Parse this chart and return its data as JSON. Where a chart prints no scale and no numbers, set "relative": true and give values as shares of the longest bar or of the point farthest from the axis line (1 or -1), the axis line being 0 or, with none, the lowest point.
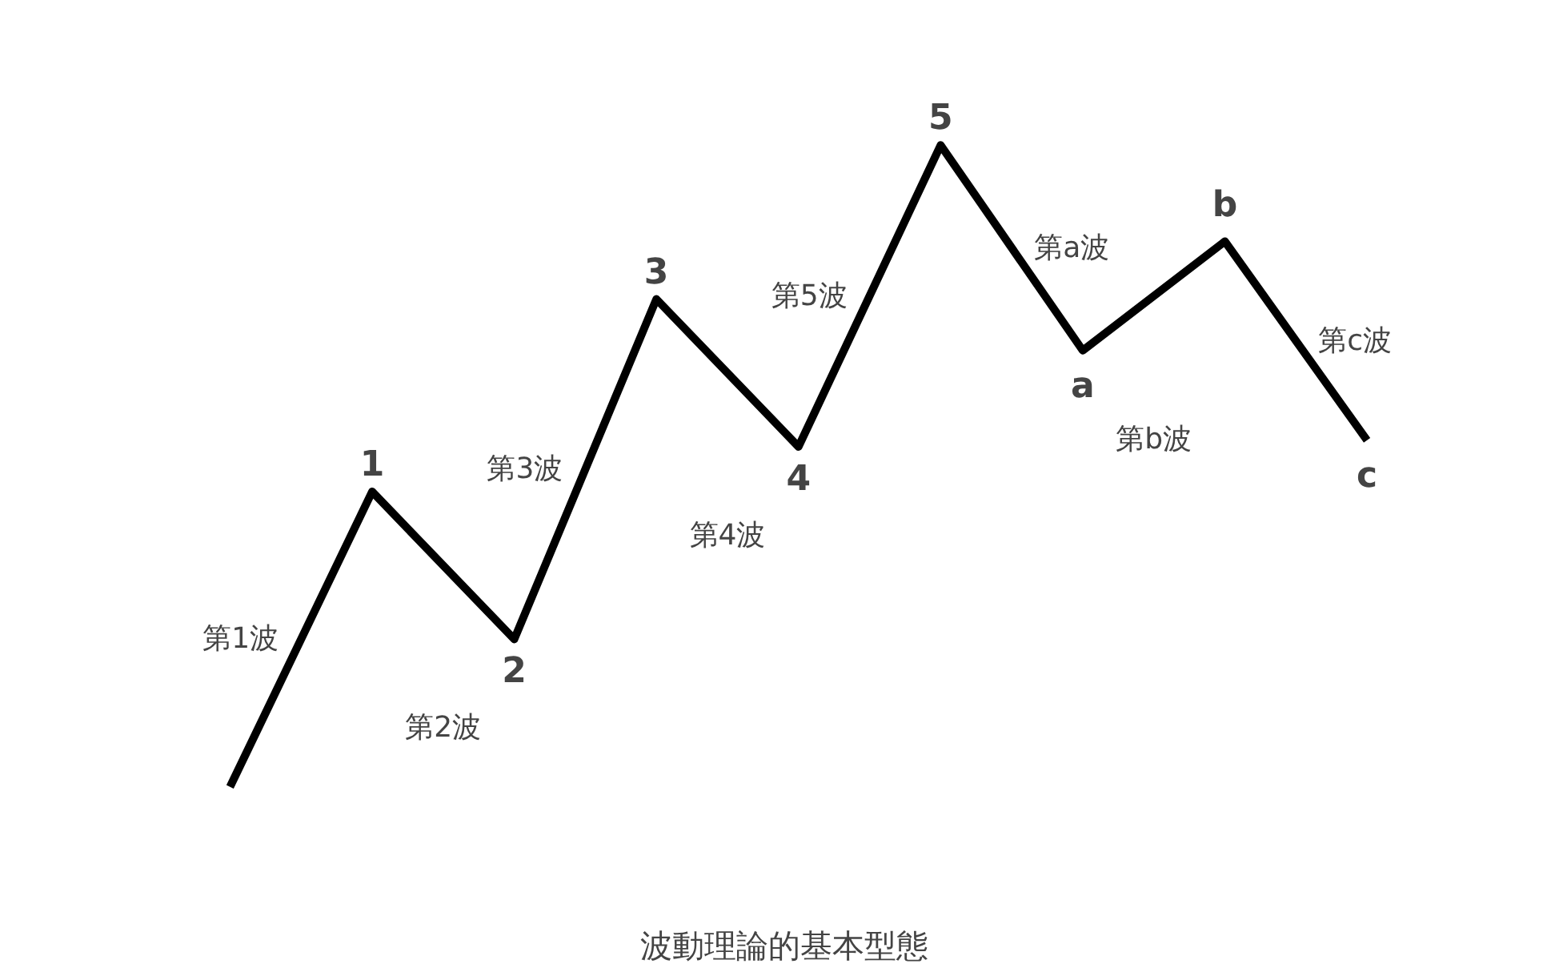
{
  "chart_data": {
    "type": "line",
    "relative": true,
    "title": "波動理論的基本型態",
    "categories": [
      null,
      "1",
      "2",
      "3",
      "4",
      "5",
      "a",
      "b",
      "c"
    ],
    "series": [
      {
        "color": "#000000",
        "values": [
          0,
          0.46,
          0.23,
          0.76,
          0.53,
          1,
          0.68,
          0.85,
          0.54
        ]
      }
    ],
    "annotations": [
      "第1波",
      "第2波",
      "第3波",
      "第4波",
      "第5波",
      "第a波",
      "第b波",
      "第c波"
    ],
    "marker": "none",
    "line_style": "solid",
    "grid": false
  }
}
